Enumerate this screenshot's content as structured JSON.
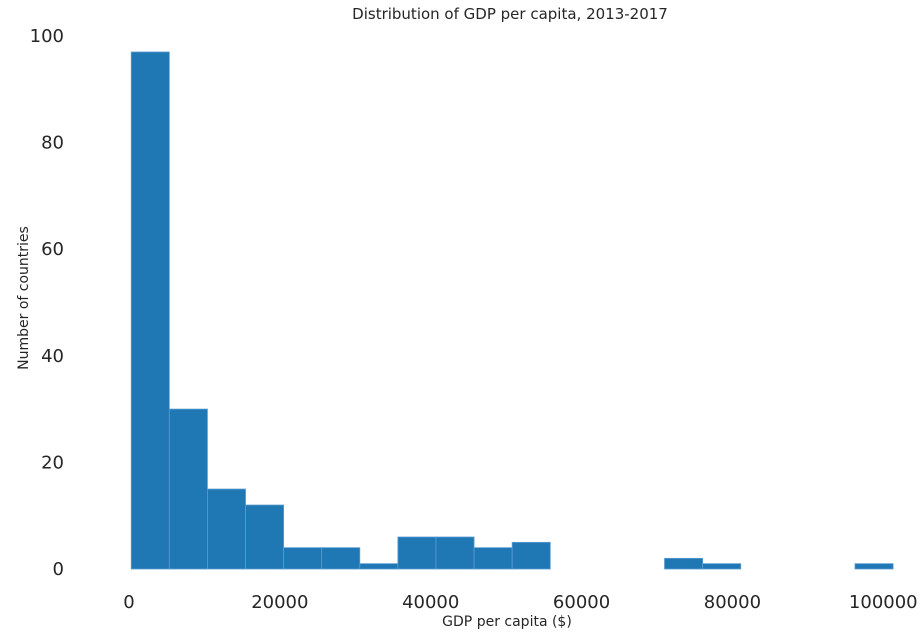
{
  "chart_data": {
    "type": "bar",
    "title": "Distribution of GDP per capita, 2013-2017",
    "xlabel": "GDP per capita ($)",
    "ylabel": "Number of countries",
    "xlim": [
      -5300,
      105000
    ],
    "ylim": [
      0,
      100
    ],
    "xticks": [
      "0",
      "20000",
      "40000",
      "60000",
      "80000",
      "100000"
    ],
    "yticks": [
      "0",
      "20",
      "40",
      "60",
      "80",
      "100"
    ],
    "bin_edges": [
      300,
      5350,
      10400,
      15450,
      20500,
      25550,
      30600,
      35650,
      40700,
      45750,
      50800,
      55850,
      60900,
      65950,
      71000,
      76050,
      81100,
      86150,
      91200,
      96250,
      101300
    ],
    "values": [
      97,
      30,
      15,
      12,
      4,
      4,
      1,
      6,
      6,
      4,
      5,
      0,
      0,
      0,
      2,
      1,
      0,
      0,
      0,
      1
    ],
    "bar_color": "#1f77b4",
    "edge_color": "#5a9bd0",
    "grid": false
  }
}
